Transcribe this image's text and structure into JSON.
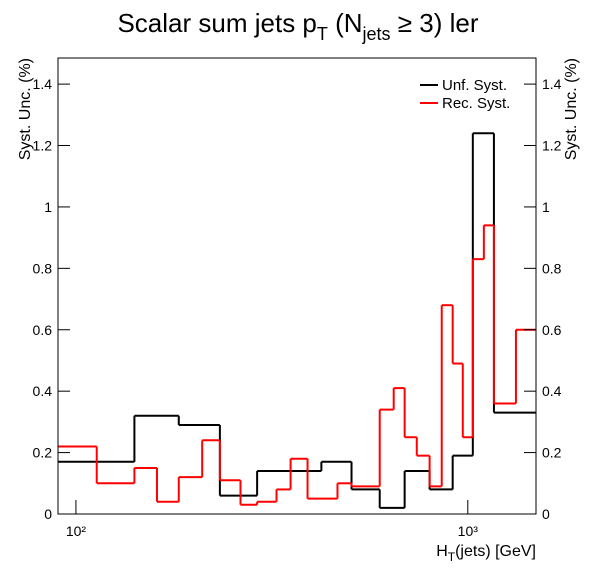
{
  "chart_data": {
    "type": "step",
    "title": [
      "Scalar sum jets p",
      "T",
      " (N",
      "jets",
      " ≥ 3) ler"
    ],
    "x_label": [
      "H",
      "T",
      "(jets) [GeV]"
    ],
    "y_label": "Syst. Unc. (%)",
    "log_x": true,
    "xlim": [
      90,
      1493
    ],
    "xticks": [
      {
        "value": 100,
        "label": "10²"
      },
      {
        "value": 1000,
        "label": "10³"
      }
    ],
    "ylim": [
      0,
      1.485
    ],
    "yticks": [
      0,
      0.2,
      0.4,
      0.6,
      0.8,
      1,
      1.2,
      1.4
    ],
    "legend": "top-right",
    "series": [
      {
        "name": "Unf. Syst.",
        "color": "#000000",
        "bins": [
          90,
          141,
          183,
          233,
          290,
          423,
          505,
          596,
          690,
          799,
          915,
          1030,
          1166,
          1493
        ],
        "values": [
          0.17,
          0.32,
          0.29,
          0.06,
          0.14,
          0.17,
          0.08,
          0.02,
          0.14,
          0.08,
          0.19,
          1.24,
          0.33
        ]
      },
      {
        "name": "Rec. Syst.",
        "color": "#ff0000",
        "bins": [
          90,
          113,
          141,
          161,
          183,
          210,
          233,
          263,
          290,
          325,
          353,
          390,
          465,
          505,
          596,
          647,
          690,
          741,
          799,
          858,
          915,
          971,
          1030,
          1099,
          1166,
          1327,
          1493
        ],
        "values": [
          0.22,
          0.1,
          0.15,
          0.04,
          0.12,
          0.24,
          0.11,
          0.03,
          0.04,
          0.08,
          0.18,
          0.05,
          0.1,
          0.09,
          0.34,
          0.41,
          0.25,
          0.19,
          0.09,
          0.68,
          0.49,
          0.25,
          0.83,
          0.94,
          0.36,
          0.6
        ]
      }
    ]
  }
}
